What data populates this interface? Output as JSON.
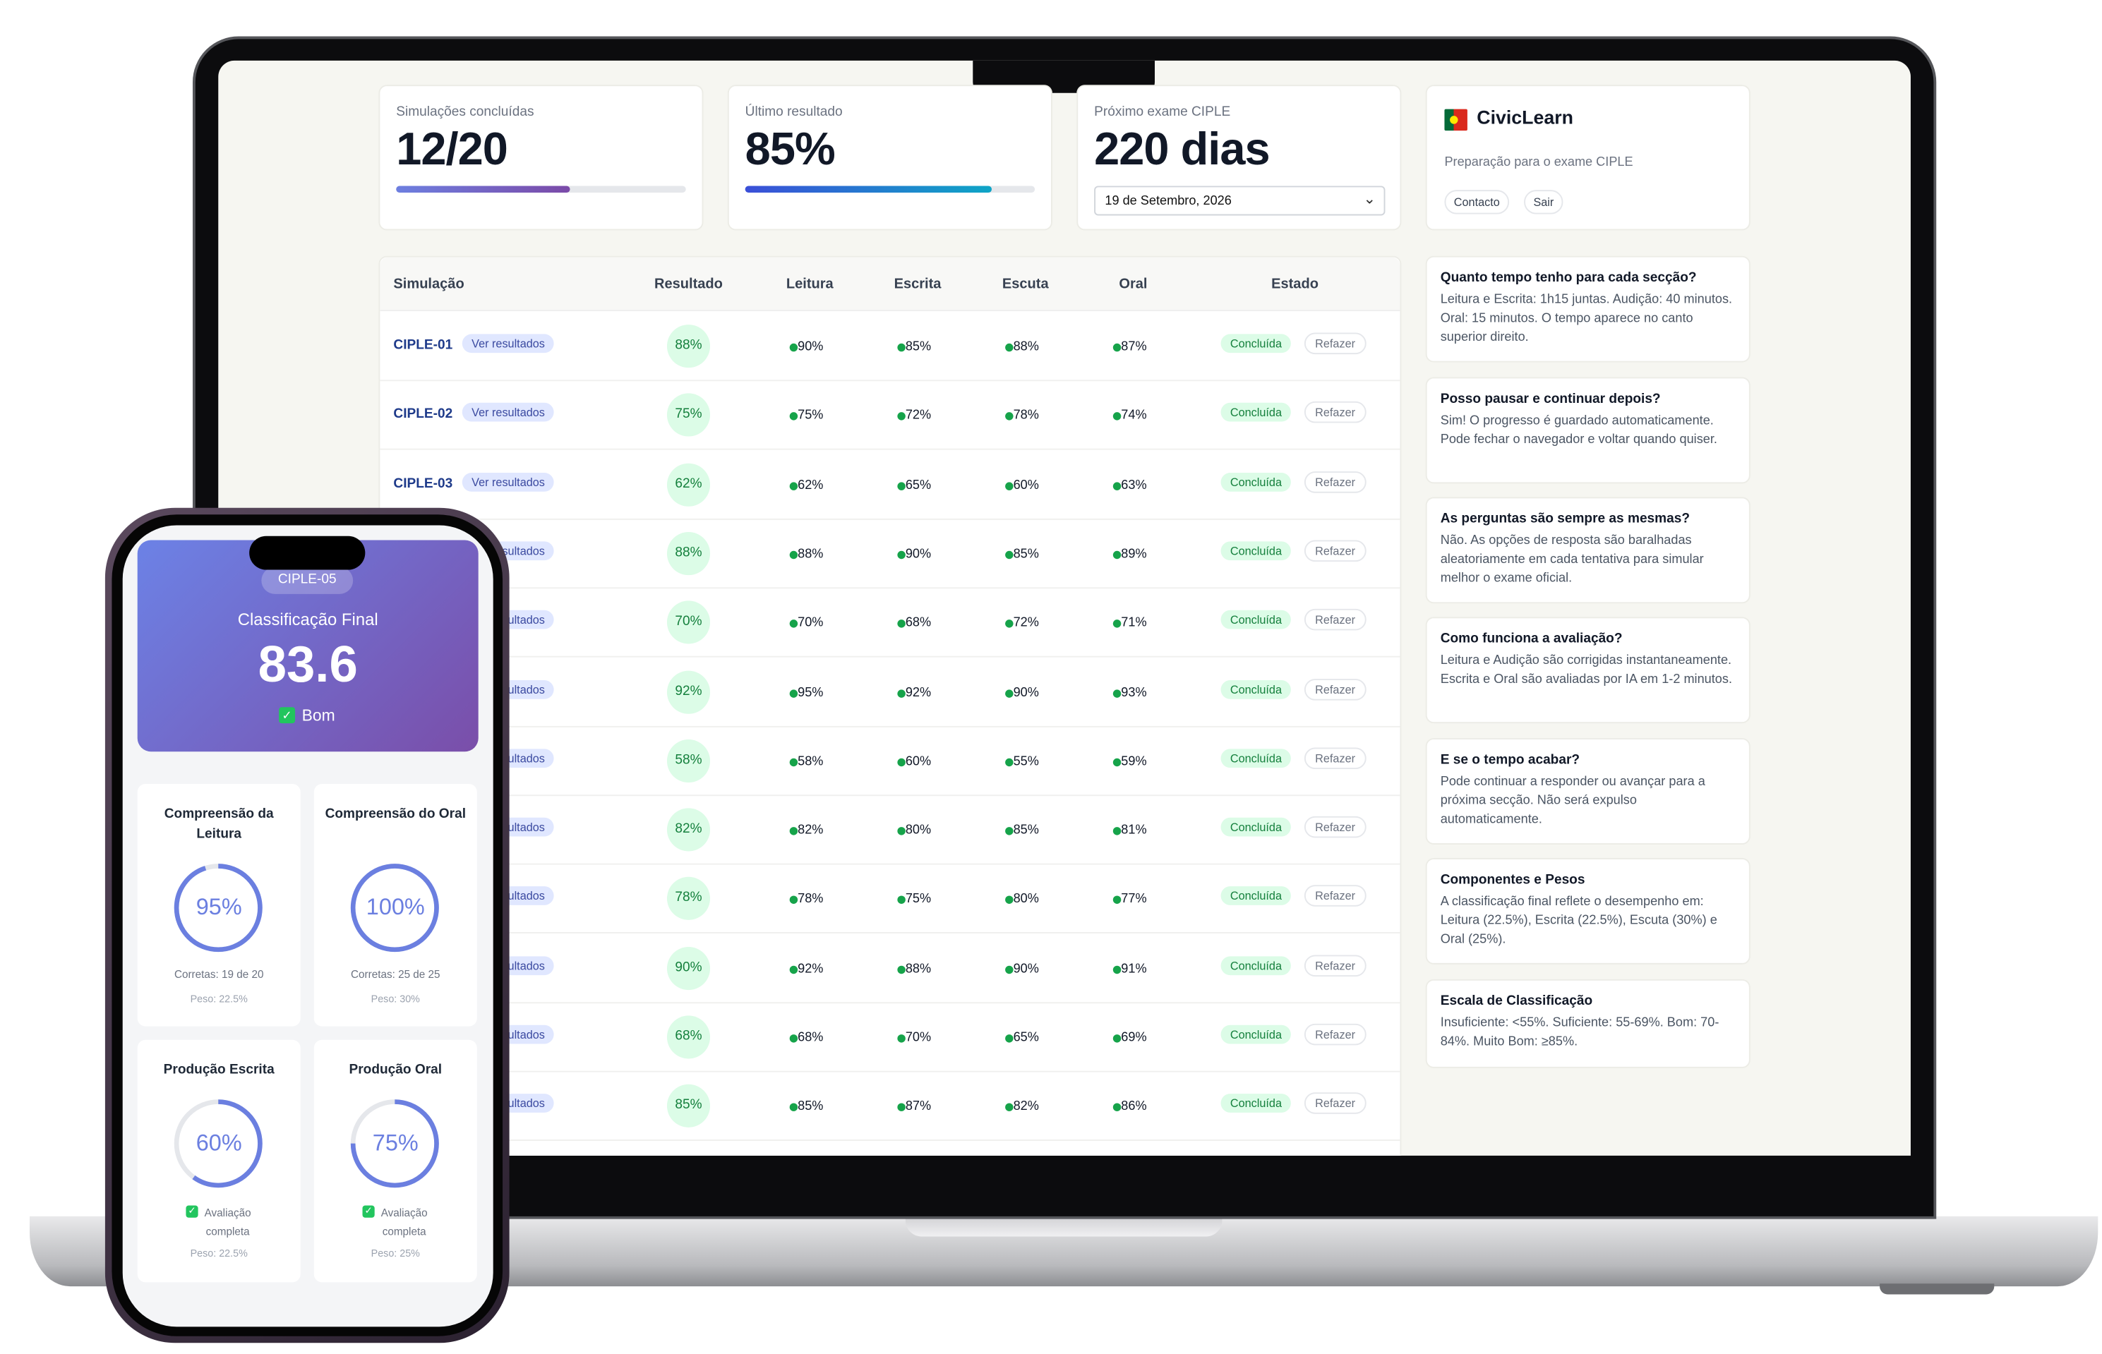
{
  "stats": [
    {
      "label": "Simulações concluídas",
      "value": "12/20",
      "bar": 60
    },
    {
      "label": "Último resultado",
      "value": "85%",
      "bar": 85
    },
    {
      "label": "Próximo exame CIPLE",
      "value": "220 dias",
      "date": "19 de Setembro, 2026"
    }
  ],
  "brand": {
    "name": "CivicLearn",
    "subtitle": "Preparação para o exame CIPLE",
    "buttons": [
      "Contacto",
      "Sair"
    ]
  },
  "table": {
    "headers": [
      "Simulação",
      "Resultado",
      "Leitura",
      "Escrita",
      "Escuta",
      "Oral",
      "Estado"
    ],
    "view_label": "Ver resultados",
    "status_label": "Concluída",
    "action_label": "Refazer",
    "rows": [
      {
        "name": "CIPLE-01",
        "cells": [
          "88%",
          "90%",
          "85%",
          "88%",
          "87%"
        ]
      },
      {
        "name": "CIPLE-02",
        "cells": [
          "75%",
          "75%",
          "72%",
          "78%",
          "74%"
        ]
      },
      {
        "name": "CIPLE-03",
        "cells": [
          "62%",
          "62%",
          "65%",
          "60%",
          "63%"
        ]
      },
      {
        "cells": [
          "88%",
          "88%",
          "90%",
          "85%",
          "89%"
        ]
      },
      {
        "cells": [
          "70%",
          "70%",
          "68%",
          "72%",
          "71%"
        ]
      },
      {
        "cells": [
          "92%",
          "95%",
          "92%",
          "90%",
          "93%"
        ]
      },
      {
        "cells": [
          "58%",
          "58%",
          "60%",
          "55%",
          "59%"
        ]
      },
      {
        "cells": [
          "82%",
          "82%",
          "80%",
          "85%",
          "81%"
        ]
      },
      {
        "cells": [
          "78%",
          "78%",
          "75%",
          "80%",
          "77%"
        ]
      },
      {
        "cells": [
          "90%",
          "92%",
          "88%",
          "90%",
          "91%"
        ]
      },
      {
        "cells": [
          "68%",
          "68%",
          "70%",
          "65%",
          "69%"
        ]
      },
      {
        "cells": [
          "85%",
          "85%",
          "87%",
          "82%",
          "86%"
        ]
      }
    ]
  },
  "faq": [
    {
      "q": "Quanto tempo tenho para cada secção?",
      "a": "Leitura e Escrita: 1h15 juntas. Audição: 40 minutos. Oral: 15 minutos. O tempo aparece no canto superior direito."
    },
    {
      "q": "Posso pausar e continuar depois?",
      "a": "Sim! O progresso é guardado automaticamente. Pode fechar o navegador e voltar quando quiser."
    },
    {
      "q": "As perguntas são sempre as mesmas?",
      "a": "Não. As opções de resposta são baralhadas aleatoriamente em cada tentativa para simular melhor o exame oficial."
    },
    {
      "q": "Como funciona a avaliação?",
      "a": "Leitura e Audição são corrigidas instantaneamente. Escrita e Oral são avaliadas por IA em 1-2 minutos."
    },
    {
      "q": "E se o tempo acabar?",
      "a": "Pode continuar a responder ou avançar para a próxima secção. Não será expulso automaticamente."
    },
    {
      "q": "Componentes e Pesos",
      "a": "A classificação final reflete o desempenho em: Leitura (22.5%), Escrita (22.5%), Escuta (30%) e Oral (25%)."
    },
    {
      "q": "Escala de Classificação",
      "a": "Insuficiente: <55%. Suficiente: 55-69%. Bom: 70-84%. Muito Bom: ≥85%."
    }
  ],
  "phone": {
    "badge": "CIPLE-05",
    "title": "Classificação Final",
    "score": "83.6",
    "grade": "Bom",
    "cards": [
      {
        "title": "Compreensão da Leitura",
        "score": {
          "value": 95,
          "label": "95%"
        },
        "detail": "Corretas: 19 de 20",
        "weight": "Peso: 22.5%"
      },
      {
        "title": "Compreensão do Oral",
        "score": {
          "value": 100,
          "label": "100%"
        },
        "detail": "Corretas: 25 de 25",
        "weight": "Peso: 30%"
      },
      {
        "title": "Produção Escrita",
        "score": {
          "value": 60,
          "label": "60%"
        },
        "status": "Avaliação completa",
        "weight": "Peso: 22.5%"
      },
      {
        "title": "Produção Oral",
        "score": {
          "value": 75,
          "label": "75%"
        },
        "status": "Avaliação completa",
        "weight": "Peso: 25%"
      }
    ]
  }
}
